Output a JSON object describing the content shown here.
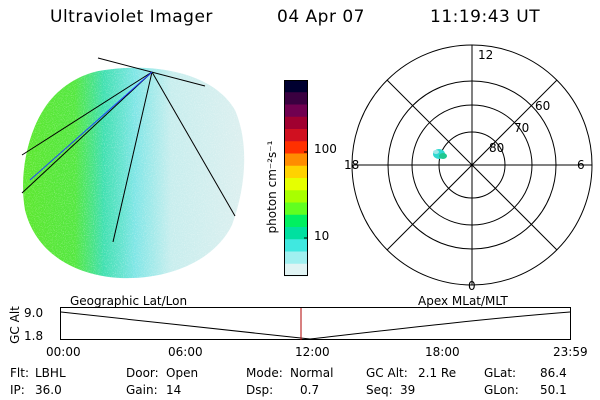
{
  "header": {
    "instrument": "Ultraviolet Imager",
    "date": "04 Apr 07",
    "time": "11:19:43 UT"
  },
  "colorbar": {
    "unit_label": "photon cm⁻²s⁻¹",
    "ticks": [
      "100",
      "10"
    ],
    "colors": [
      "#000030",
      "#3a0040",
      "#700050",
      "#a00030",
      "#d01020",
      "#ff3000",
      "#ff8c00",
      "#ffd200",
      "#e6ff00",
      "#a8ff00",
      "#60ff20",
      "#00f060",
      "#00e0a0",
      "#40e8e0",
      "#a0f0f0",
      "#e0f4f4"
    ]
  },
  "polar_plot": {
    "mlt_labels": {
      "top": "12",
      "left": "18",
      "right": "6",
      "bottom": "0"
    },
    "lat_labels": [
      "60",
      "70",
      "80"
    ]
  },
  "altitude_strip": {
    "axis_title": "GC Alt",
    "y_ticks": [
      "9.0",
      "1.8"
    ],
    "left_label": "Geographic Lat/Lon",
    "right_label": "Apex MLat/MLT",
    "x_ticks": [
      "00:00",
      "06:00",
      "12:00",
      "18:00",
      "23:59"
    ],
    "current_time_marker_color": "#b00000"
  },
  "info": {
    "row1": [
      {
        "label": "Flt:",
        "value": "LBHL"
      },
      {
        "label": "Door:",
        "value": "Open"
      },
      {
        "label": "Mode:",
        "value": "Normal"
      },
      {
        "label": "GC Alt:",
        "value": "2.1 Re"
      },
      {
        "label": "GLat:",
        "value": "86.4"
      }
    ],
    "row2": [
      {
        "label": "IP:",
        "value": "36.0"
      },
      {
        "label": "Gain:",
        "value": "14"
      },
      {
        "label": "Dsp:",
        "value": "0.7"
      },
      {
        "label": "Seq:",
        "value": "39"
      },
      {
        "label": "GLon:",
        "value": "50.1"
      }
    ]
  }
}
